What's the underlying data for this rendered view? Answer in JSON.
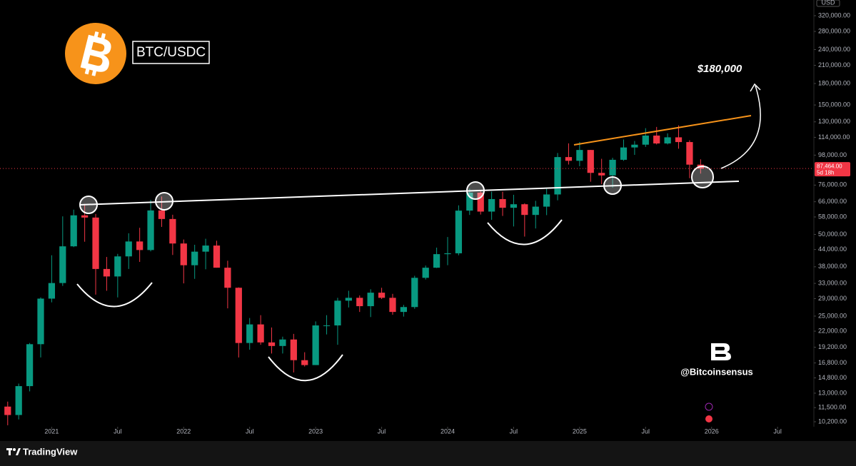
{
  "chart_data": {
    "type": "candlestick",
    "title": "BTC/USDC",
    "currency": "USD",
    "log_scale": true,
    "up_color": "#089981",
    "down_color": "#f23645",
    "x": [
      -4,
      -3,
      -2,
      -1,
      0,
      1,
      2,
      3,
      4,
      5,
      6,
      7,
      8,
      9,
      10,
      11,
      12,
      13,
      14,
      15,
      16,
      17,
      18,
      19,
      20,
      21,
      22,
      23,
      24,
      25,
      26,
      27,
      28,
      29,
      30,
      31,
      32,
      33,
      34,
      35,
      36,
      37,
      38,
      39,
      40,
      41,
      42,
      43,
      44,
      45,
      46,
      47,
      48,
      49,
      50,
      51,
      52,
      53,
      54,
      55,
      56,
      57,
      58,
      59
    ],
    "open": [
      11600,
      10800,
      13800,
      19700,
      29000,
      33100,
      45200,
      58800,
      57700,
      37300,
      35000,
      41500,
      47100,
      43800,
      61300,
      57000,
      46300,
      38500,
      43200,
      45500,
      37700,
      31800,
      19900,
      23300,
      20000,
      19400,
      20500,
      17200,
      16500,
      23100,
      23100,
      28500,
      29200,
      27200,
      30500,
      29200,
      25900,
      27000,
      34600,
      37700,
      42300,
      42600,
      61200,
      71300,
      60700,
      67500,
      62700,
      64600,
      59000,
      63300,
      70200,
      96400,
      93400,
      102400,
      84300,
      82500,
      94200,
      104600,
      107100,
      115700,
      108200,
      114000,
      109500,
      90400
    ],
    "high": [
      12100,
      14100,
      19900,
      29300,
      41900,
      58300,
      61700,
      64800,
      59500,
      41300,
      42400,
      50500,
      52900,
      67000,
      69000,
      59100,
      47900,
      45800,
      48200,
      47400,
      40000,
      31900,
      24600,
      25200,
      22700,
      21000,
      21500,
      18400,
      23900,
      25200,
      29200,
      31000,
      29800,
      31400,
      31800,
      30200,
      27500,
      35200,
      38400,
      44700,
      48900,
      64000,
      73800,
      72700,
      71900,
      71900,
      70000,
      65100,
      66500,
      73600,
      99800,
      108300,
      109600,
      102500,
      95000,
      95800,
      111900,
      110500,
      123200,
      124500,
      117900,
      126200,
      111200,
      94600
    ],
    "low": [
      9900,
      10400,
      13200,
      17600,
      28100,
      32300,
      44900,
      47000,
      30000,
      31000,
      29300,
      37300,
      39600,
      43300,
      53300,
      42000,
      33000,
      34300,
      37200,
      37700,
      26700,
      17600,
      18800,
      19600,
      18200,
      18200,
      15500,
      16300,
      16500,
      21400,
      19600,
      26900,
      25900,
      24800,
      28900,
      25300,
      24900,
      26600,
      34100,
      37600,
      38500,
      41900,
      59000,
      59200,
      56600,
      58500,
      53500,
      49100,
      52600,
      58900,
      66800,
      90500,
      89200,
      78200,
      76600,
      74400,
      93400,
      98200,
      105100,
      107300,
      107300,
      103500,
      80600,
      83800
    ],
    "close": [
      10800,
      13800,
      19700,
      29000,
      33100,
      45200,
      58800,
      57700,
      37300,
      35000,
      41500,
      47100,
      43800,
      61300,
      57000,
      46300,
      38500,
      43200,
      45500,
      37700,
      31800,
      19900,
      23300,
      20000,
      19400,
      20500,
      17200,
      16500,
      23100,
      23100,
      28500,
      29200,
      27200,
      30500,
      29200,
      25900,
      27000,
      34600,
      37700,
      42300,
      42600,
      61200,
      71300,
      60700,
      67500,
      62700,
      64600,
      59000,
      63300,
      70200,
      96400,
      93400,
      102400,
      84300,
      82500,
      94200,
      104600,
      107100,
      115700,
      108200,
      114000,
      109500,
      90400,
      87464
    ],
    "xlim": [
      -4.7,
      69.3
    ],
    "xticks": [
      {
        "value": 0,
        "label": "2021"
      },
      {
        "value": 6,
        "label": "Jul"
      },
      {
        "value": 12,
        "label": "2022"
      },
      {
        "value": 18,
        "label": "Jul"
      },
      {
        "value": 24,
        "label": "2023"
      },
      {
        "value": 30,
        "label": "Jul"
      },
      {
        "value": 36,
        "label": "2024"
      },
      {
        "value": 42,
        "label": "Jul"
      },
      {
        "value": 48,
        "label": "2025"
      },
      {
        "value": 54,
        "label": "Jul"
      },
      {
        "value": 60,
        "label": "2026"
      },
      {
        "value": 66,
        "label": "Jul"
      }
    ],
    "ylim": [
      9776,
      365600
    ],
    "yticks": [
      {
        "value": 320000,
        "label": "320,000.00"
      },
      {
        "value": 280000,
        "label": "280,000.00"
      },
      {
        "value": 240000,
        "label": "240,000.00"
      },
      {
        "value": 210000,
        "label": "210,000.00"
      },
      {
        "value": 180000,
        "label": "180,000.00"
      },
      {
        "value": 150000,
        "label": "150,000.00"
      },
      {
        "value": 130000,
        "label": "130,000.00"
      },
      {
        "value": 114000,
        "label": "114,000.00"
      },
      {
        "value": 98000,
        "label": "98,000.00"
      },
      {
        "value": 76000,
        "label": "76,000.00"
      },
      {
        "value": 66000,
        "label": "66,000.00"
      },
      {
        "value": 58000,
        "label": "58,000.00"
      },
      {
        "value": 50000,
        "label": "50,000.00"
      },
      {
        "value": 44000,
        "label": "44,000.00"
      },
      {
        "value": 38000,
        "label": "38,000.00"
      },
      {
        "value": 33000,
        "label": "33,000.00"
      },
      {
        "value": 29000,
        "label": "29,000.00"
      },
      {
        "value": 25000,
        "label": "25,000.00"
      },
      {
        "value": 22000,
        "label": "22,000.00"
      },
      {
        "value": 19200,
        "label": "19,200.00"
      },
      {
        "value": 16800,
        "label": "16,800.00"
      },
      {
        "value": 14800,
        "label": "14,800.00"
      },
      {
        "value": 13000,
        "label": "13,000.00"
      },
      {
        "value": 11500,
        "label": "11,500.00"
      },
      {
        "value": 10200,
        "label": "10,200.00"
      }
    ],
    "last_price": {
      "value": 87464,
      "label": "87,464.00",
      "countdown": "5d 18h"
    },
    "annotations": {
      "target": "$180,000",
      "handle": "@Bitcoinsensus"
    },
    "footer": "TradingView"
  }
}
